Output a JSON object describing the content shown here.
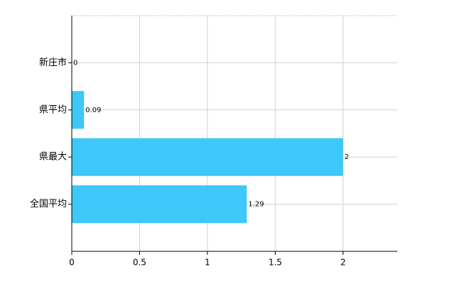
{
  "chart_data": {
    "type": "barh",
    "categories": [
      "新庄市",
      "県平均",
      "県最大",
      "全国平均"
    ],
    "values": [
      0,
      0.09,
      2,
      1.29
    ],
    "color": "#3cc8f8",
    "xlim": [
      0,
      2.4
    ],
    "xticks": [
      0,
      0.5,
      1,
      1.5,
      2
    ],
    "grid": true
  }
}
